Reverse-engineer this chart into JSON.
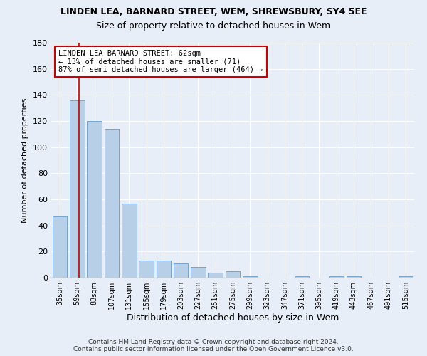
{
  "title": "LINDEN LEA, BARNARD STREET, WEM, SHREWSBURY, SY4 5EE",
  "subtitle": "Size of property relative to detached houses in Wem",
  "xlabel": "Distribution of detached houses by size in Wem",
  "ylabel": "Number of detached properties",
  "bar_color": "#b8cfe8",
  "bar_edge_color": "#6699cc",
  "categories": [
    "35sqm",
    "59sqm",
    "83sqm",
    "107sqm",
    "131sqm",
    "155sqm",
    "179sqm",
    "203sqm",
    "227sqm",
    "251sqm",
    "275sqm",
    "299sqm",
    "323sqm",
    "347sqm",
    "371sqm",
    "395sqm",
    "419sqm",
    "443sqm",
    "467sqm",
    "491sqm",
    "515sqm"
  ],
  "values": [
    47,
    136,
    120,
    114,
    57,
    13,
    13,
    11,
    8,
    4,
    5,
    1,
    0,
    0,
    1,
    0,
    1,
    1,
    0,
    0,
    1
  ],
  "ylim": [
    0,
    180
  ],
  "yticks": [
    0,
    20,
    40,
    60,
    80,
    100,
    120,
    140,
    160,
    180
  ],
  "annotation_text_line1": "LINDEN LEA BARNARD STREET: 62sqm",
  "annotation_text_line2": "← 13% of detached houses are smaller (71)",
  "annotation_text_line3": "87% of semi-detached houses are larger (464) →",
  "footer_line1": "Contains HM Land Registry data © Crown copyright and database right 2024.",
  "footer_line2": "Contains public sector information licensed under the Open Government Licence v3.0.",
  "background_color": "#e8eef8",
  "plot_bg_color": "#e8eef8",
  "grid_color": "#ffffff",
  "annotation_box_color": "#ffffff",
  "annotation_box_edge_color": "#cc0000",
  "property_line_color": "#cc0000",
  "title_fontsize": 9,
  "subtitle_fontsize": 9
}
